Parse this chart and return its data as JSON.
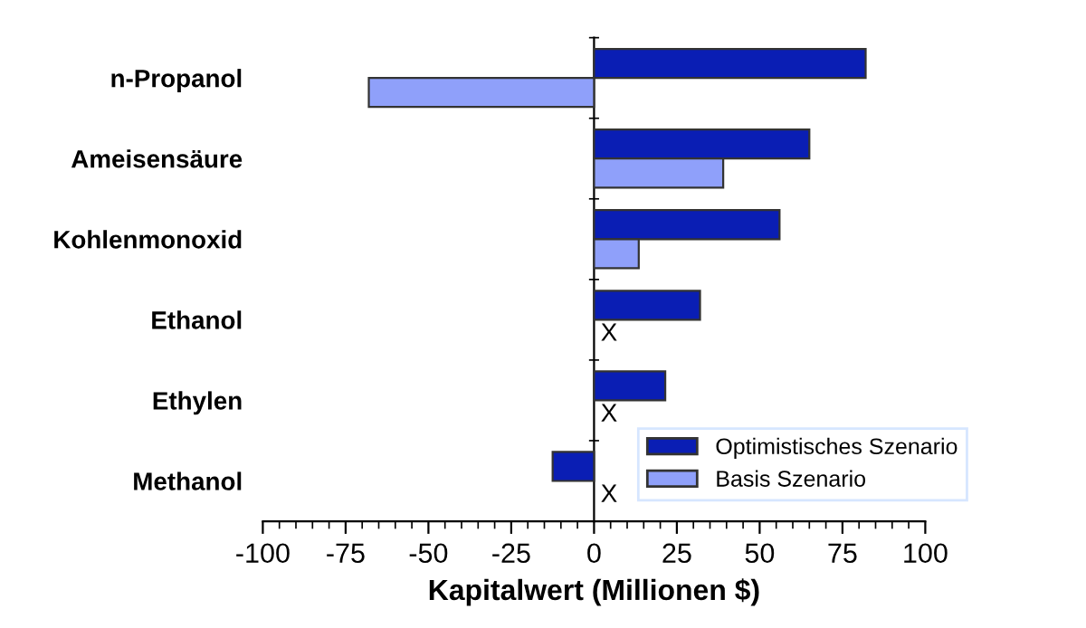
{
  "chart_data": {
    "type": "bar",
    "orientation": "horizontal",
    "xlabel": "Kapitalwert (Millionen $)",
    "categories": [
      "n-Propanol",
      "Ameisensäure",
      "Kohlenmonoxid",
      "Ethanol",
      "Ethylen",
      "Methanol"
    ],
    "series": [
      {
        "name": "Optimistisches Szenario",
        "color": "#0a1eb4",
        "values": [
          82,
          65,
          56,
          32,
          21.5,
          -12.5
        ]
      },
      {
        "name": "Basis Szenario",
        "color": "#8fa0fa",
        "values": [
          -68,
          39,
          13.5,
          null,
          null,
          null
        ]
      }
    ],
    "xlim": [
      -100,
      100
    ],
    "xticks": [
      -100,
      -75,
      -50,
      -25,
      0,
      25,
      50,
      75,
      100
    ],
    "annotations": [
      "X",
      "X",
      "X"
    ],
    "legend": "bottom right"
  }
}
